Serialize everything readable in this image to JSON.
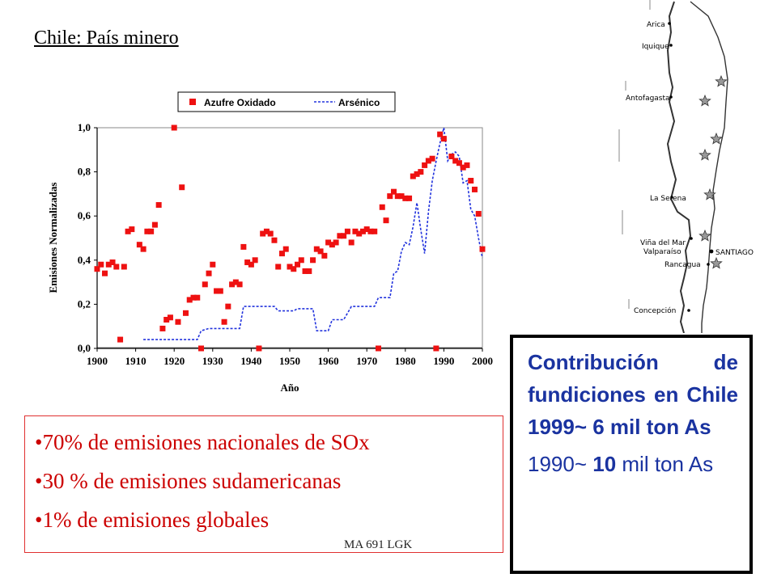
{
  "slide": {
    "title": "Chile: País minero",
    "bullets": [
      "•70% de emisiones nacionales de SOx",
      "•30 % de emisiones sudamericanas",
      "•1% de emisiones globales"
    ],
    "footer": "MA 691 LGK",
    "info_bold": "Contribución de fundiciones en Chile 1999~ 6 mil ton As",
    "info_plain_a": "1990~ ",
    "info_plain_b": "10",
    "info_plain_c": " mil ton As"
  },
  "map": {
    "cities": [
      "Arica",
      "Iquique",
      "Antofagasta",
      "La Serena",
      "Viña del Mar",
      "Valparaíso",
      "SANTIAGO",
      "Rancagua",
      "Concepción"
    ],
    "star_color": "#999999"
  },
  "chart_data": {
    "type": "scatter+line",
    "xlabel": "Año",
    "ylabel": "Emisiones Normalizadas",
    "xlim": [
      1900,
      2000
    ],
    "ylim": [
      0,
      1
    ],
    "xticks": [
      "1900",
      "1910",
      "1920",
      "1930",
      "1940",
      "1950",
      "1960",
      "1970",
      "1980",
      "1990",
      "2000"
    ],
    "yticks": [
      "0,0",
      "0,2",
      "0,4",
      "0,6",
      "0,8",
      "1,0"
    ],
    "legend_position": "top",
    "series": [
      {
        "name": "Azufre Oxidado",
        "style": "square-markers",
        "color": "#ee1111",
        "points": [
          [
            1900,
            0.36
          ],
          [
            1901,
            0.38
          ],
          [
            1902,
            0.34
          ],
          [
            1903,
            0.38
          ],
          [
            1904,
            0.39
          ],
          [
            1905,
            0.37
          ],
          [
            1906,
            0.04
          ],
          [
            1907,
            0.37
          ],
          [
            1908,
            0.53
          ],
          [
            1909,
            0.54
          ],
          [
            1911,
            0.47
          ],
          [
            1912,
            0.45
          ],
          [
            1913,
            0.53
          ],
          [
            1914,
            0.53
          ],
          [
            1915,
            0.56
          ],
          [
            1916,
            0.65
          ],
          [
            1917,
            0.09
          ],
          [
            1918,
            0.13
          ],
          [
            1919,
            0.14
          ],
          [
            1920,
            1.0
          ],
          [
            1921,
            0.12
          ],
          [
            1922,
            0.73
          ],
          [
            1923,
            0.16
          ],
          [
            1924,
            0.22
          ],
          [
            1925,
            0.23
          ],
          [
            1926,
            0.23
          ],
          [
            1927,
            0.0
          ],
          [
            1928,
            0.29
          ],
          [
            1929,
            0.34
          ],
          [
            1930,
            0.38
          ],
          [
            1931,
            0.26
          ],
          [
            1932,
            0.26
          ],
          [
            1933,
            0.12
          ],
          [
            1934,
            0.19
          ],
          [
            1935,
            0.29
          ],
          [
            1936,
            0.3
          ],
          [
            1937,
            0.29
          ],
          [
            1938,
            0.46
          ],
          [
            1939,
            0.39
          ],
          [
            1940,
            0.38
          ],
          [
            1941,
            0.4
          ],
          [
            1942,
            0.0
          ],
          [
            1943,
            0.52
          ],
          [
            1944,
            0.53
          ],
          [
            1945,
            0.52
          ],
          [
            1946,
            0.49
          ],
          [
            1947,
            0.37
          ],
          [
            1948,
            0.43
          ],
          [
            1949,
            0.45
          ],
          [
            1950,
            0.37
          ],
          [
            1951,
            0.36
          ],
          [
            1952,
            0.38
          ],
          [
            1953,
            0.4
          ],
          [
            1954,
            0.35
          ],
          [
            1955,
            0.35
          ],
          [
            1956,
            0.4
          ],
          [
            1957,
            0.45
          ],
          [
            1958,
            0.44
          ],
          [
            1959,
            0.42
          ],
          [
            1960,
            0.48
          ],
          [
            1961,
            0.47
          ],
          [
            1962,
            0.48
          ],
          [
            1963,
            0.51
          ],
          [
            1964,
            0.51
          ],
          [
            1965,
            0.53
          ],
          [
            1966,
            0.48
          ],
          [
            1967,
            0.53
          ],
          [
            1968,
            0.52
          ],
          [
            1969,
            0.53
          ],
          [
            1970,
            0.54
          ],
          [
            1971,
            0.53
          ],
          [
            1972,
            0.53
          ],
          [
            1973,
            0.0
          ],
          [
            1974,
            0.64
          ],
          [
            1975,
            0.58
          ],
          [
            1976,
            0.69
          ],
          [
            1977,
            0.71
          ],
          [
            1978,
            0.69
          ],
          [
            1979,
            0.69
          ],
          [
            1980,
            0.68
          ],
          [
            1981,
            0.68
          ],
          [
            1982,
            0.78
          ],
          [
            1983,
            0.79
          ],
          [
            1984,
            0.8
          ],
          [
            1985,
            0.83
          ],
          [
            1986,
            0.85
          ],
          [
            1987,
            0.86
          ],
          [
            1988,
            0.0
          ],
          [
            1989,
            0.97
          ],
          [
            1990,
            0.95
          ],
          [
            1992,
            0.87
          ],
          [
            1993,
            0.85
          ],
          [
            1994,
            0.84
          ],
          [
            1995,
            0.82
          ],
          [
            1996,
            0.83
          ],
          [
            1997,
            0.76
          ],
          [
            1998,
            0.72
          ],
          [
            1999,
            0.61
          ],
          [
            2000,
            0.45
          ]
        ]
      },
      {
        "name": "Arsénico",
        "style": "dashed-line",
        "color": "#2233dd",
        "points": [
          [
            1912,
            0.04
          ],
          [
            1918,
            0.04
          ],
          [
            1919,
            0.04
          ],
          [
            1926,
            0.04
          ],
          [
            1927,
            0.08
          ],
          [
            1929,
            0.09
          ],
          [
            1936,
            0.09
          ],
          [
            1937,
            0.09
          ],
          [
            1938,
            0.19
          ],
          [
            1946,
            0.19
          ],
          [
            1947,
            0.17
          ],
          [
            1951,
            0.17
          ],
          [
            1952,
            0.18
          ],
          [
            1956,
            0.18
          ],
          [
            1957,
            0.08
          ],
          [
            1960,
            0.08
          ],
          [
            1961,
            0.13
          ],
          [
            1964,
            0.13
          ],
          [
            1965,
            0.16
          ],
          [
            1966,
            0.19
          ],
          [
            1972,
            0.19
          ],
          [
            1973,
            0.23
          ],
          [
            1976,
            0.23
          ],
          [
            1977,
            0.34
          ],
          [
            1978,
            0.35
          ],
          [
            1979,
            0.44
          ],
          [
            1980,
            0.48
          ],
          [
            1981,
            0.47
          ],
          [
            1982,
            0.55
          ],
          [
            1983,
            0.66
          ],
          [
            1984,
            0.54
          ],
          [
            1985,
            0.43
          ],
          [
            1986,
            0.62
          ],
          [
            1987,
            0.76
          ],
          [
            1988,
            0.85
          ],
          [
            1989,
            0.93
          ],
          [
            1990,
            1.0
          ],
          [
            1991,
            0.85
          ],
          [
            1992,
            0.88
          ],
          [
            1993,
            0.89
          ],
          [
            1994,
            0.87
          ],
          [
            1995,
            0.75
          ],
          [
            1996,
            0.76
          ],
          [
            1997,
            0.63
          ],
          [
            1998,
            0.6
          ],
          [
            1999,
            0.5
          ],
          [
            2000,
            0.41
          ]
        ]
      }
    ]
  }
}
